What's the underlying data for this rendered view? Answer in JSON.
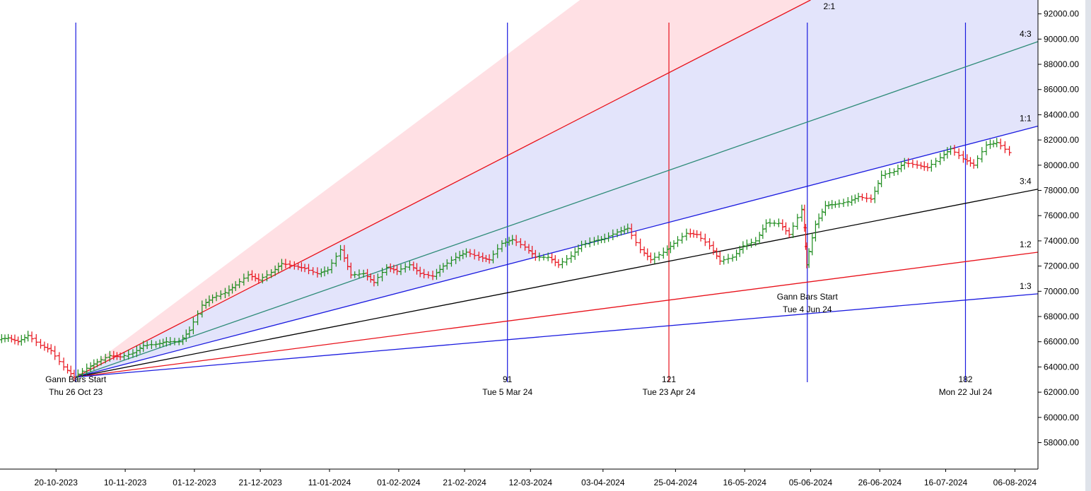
{
  "chart_data": {
    "type": "line",
    "xlim": [
      "2023-10-03",
      "2024-08-13"
    ],
    "ylim": [
      55900,
      93100
    ],
    "y_ticks": [
      "58000.00",
      "60000.00",
      "62000.00",
      "64000.00",
      "66000.00",
      "68000.00",
      "70000.00",
      "72000.00",
      "74000.00",
      "76000.00",
      "78000.00",
      "80000.00",
      "82000.00",
      "84000.00",
      "86000.00",
      "88000.00",
      "90000.00",
      "92000.00"
    ],
    "x_ticks": [
      "20-10-2023",
      "10-11-2023",
      "01-12-2023",
      "21-12-2023",
      "11-01-2024",
      "01-02-2024",
      "21-02-2024",
      "12-03-2024",
      "03-04-2024",
      "25-04-2024",
      "16-05-2024",
      "05-06-2024",
      "26-06-2024",
      "16-07-2024",
      "06-08-2024"
    ],
    "gann_origin": {
      "x": "2023-10-26",
      "y": 63200
    },
    "fan_lines": [
      {
        "label": "2:1",
        "end": {
          "x": "2024-06-05",
          "y": 93100
        },
        "color": "#e8111a"
      },
      {
        "label": "4:3",
        "end": {
          "x": "2024-08-13",
          "y": 89800
        },
        "color": "#2e8b78"
      },
      {
        "label": "1:1",
        "end": {
          "x": "2024-08-13",
          "y": 83100
        },
        "color": "#1a1adf"
      },
      {
        "label": "3:4",
        "end": {
          "x": "2024-08-13",
          "y": 78100
        },
        "color": "#000000"
      },
      {
        "label": "1:2",
        "end": {
          "x": "2024-08-13",
          "y": 73100
        },
        "color": "#e8111a"
      },
      {
        "label": "1:3",
        "end": {
          "x": "2024-08-13",
          "y": 69800
        },
        "color": "#1a1adf"
      }
    ],
    "vertical_markers": [
      {
        "x": "2023-10-26",
        "color": "#1a1adf",
        "count": "",
        "labels": [
          "Gann Bars Start",
          "Thu 26 Oct 23"
        ],
        "label_pos": "bottom"
      },
      {
        "x": "2024-03-05",
        "color": "#1a1adf",
        "count": "91",
        "labels": [
          "Tue 5 Mar 24"
        ],
        "label_pos": "bottom"
      },
      {
        "x": "2024-04-23",
        "color": "#e8111a",
        "count": "121",
        "labels": [
          "Tue 23 Apr 24"
        ],
        "label_pos": "bottom"
      },
      {
        "x": "2024-06-04",
        "color": "#1a1adf",
        "count": "",
        "labels": [
          "Gann Bars Start",
          "Tue 4 Jun 24"
        ],
        "label_pos": "middle"
      },
      {
        "x": "2024-07-22",
        "color": "#1a1adf",
        "count": "182",
        "labels": [
          "Mon 22 Jul 24"
        ],
        "label_pos": "bottom"
      }
    ],
    "price_path": [
      [
        "2023-10-03",
        66200
      ],
      [
        "2023-10-06",
        66300
      ],
      [
        "2023-10-09",
        66000
      ],
      [
        "2023-10-12",
        66500
      ],
      [
        "2023-10-16",
        65700
      ],
      [
        "2023-10-19",
        65300
      ],
      [
        "2023-10-23",
        64000
      ],
      [
        "2023-10-26",
        63200
      ],
      [
        "2023-10-30",
        63900
      ],
      [
        "2023-11-02",
        64400
      ],
      [
        "2023-11-06",
        64900
      ],
      [
        "2023-11-09",
        64800
      ],
      [
        "2023-11-13",
        65100
      ],
      [
        "2023-11-16",
        65700
      ],
      [
        "2023-11-20",
        65800
      ],
      [
        "2023-11-23",
        66000
      ],
      [
        "2023-11-27",
        66000
      ],
      [
        "2023-11-30",
        66900
      ],
      [
        "2023-12-04",
        68900
      ],
      [
        "2023-12-07",
        69500
      ],
      [
        "2023-12-11",
        69900
      ],
      [
        "2023-12-14",
        70500
      ],
      [
        "2023-12-18",
        71300
      ],
      [
        "2023-12-21",
        70900
      ],
      [
        "2023-12-25",
        71500
      ],
      [
        "2023-12-28",
        72200
      ],
      [
        "2024-01-01",
        72000
      ],
      [
        "2024-01-04",
        71800
      ],
      [
        "2024-01-08",
        71400
      ],
      [
        "2024-01-11",
        71700
      ],
      [
        "2024-01-15",
        73300
      ],
      [
        "2024-01-18",
        71300
      ],
      [
        "2024-01-22",
        71400
      ],
      [
        "2024-01-25",
        70700
      ],
      [
        "2024-01-29",
        71900
      ],
      [
        "2024-02-01",
        71600
      ],
      [
        "2024-02-05",
        72100
      ],
      [
        "2024-02-08",
        71400
      ],
      [
        "2024-02-12",
        71200
      ],
      [
        "2024-02-15",
        72000
      ],
      [
        "2024-02-19",
        72700
      ],
      [
        "2024-02-22",
        73100
      ],
      [
        "2024-02-26",
        72700
      ],
      [
        "2024-02-29",
        72500
      ],
      [
        "2024-03-04",
        73800
      ],
      [
        "2024-03-07",
        74100
      ],
      [
        "2024-03-11",
        73500
      ],
      [
        "2024-03-14",
        72700
      ],
      [
        "2024-03-18",
        72700
      ],
      [
        "2024-03-21",
        72100
      ],
      [
        "2024-03-25",
        72800
      ],
      [
        "2024-03-28",
        73700
      ],
      [
        "2024-04-01",
        74000
      ],
      [
        "2024-04-04",
        74200
      ],
      [
        "2024-04-08",
        74700
      ],
      [
        "2024-04-11",
        75000
      ],
      [
        "2024-04-15",
        73300
      ],
      [
        "2024-04-18",
        72500
      ],
      [
        "2024-04-22",
        73100
      ],
      [
        "2024-04-25",
        73800
      ],
      [
        "2024-04-29",
        74600
      ],
      [
        "2024-05-02",
        74500
      ],
      [
        "2024-05-06",
        73600
      ],
      [
        "2024-05-09",
        72400
      ],
      [
        "2024-05-13",
        72700
      ],
      [
        "2024-05-16",
        73600
      ],
      [
        "2024-05-20",
        74000
      ],
      [
        "2024-05-23",
        75400
      ],
      [
        "2024-05-27",
        75400
      ],
      [
        "2024-05-30",
        74500
      ],
      [
        "2024-06-03",
        76500
      ],
      [
        "2024-06-04",
        72100
      ],
      [
        "2024-06-07",
        75300
      ],
      [
        "2024-06-10",
        76800
      ],
      [
        "2024-06-13",
        76900
      ],
      [
        "2024-06-17",
        77100
      ],
      [
        "2024-06-20",
        77500
      ],
      [
        "2024-06-24",
        77300
      ],
      [
        "2024-06-27",
        79200
      ],
      [
        "2024-07-01",
        79500
      ],
      [
        "2024-07-04",
        80200
      ],
      [
        "2024-07-08",
        80000
      ],
      [
        "2024-07-11",
        79800
      ],
      [
        "2024-07-15",
        80600
      ],
      [
        "2024-07-18",
        81300
      ],
      [
        "2024-07-22",
        80500
      ],
      [
        "2024-07-25",
        80000
      ],
      [
        "2024-07-29",
        81600
      ],
      [
        "2024-08-01",
        81800
      ],
      [
        "2024-08-05",
        81000
      ]
    ]
  }
}
